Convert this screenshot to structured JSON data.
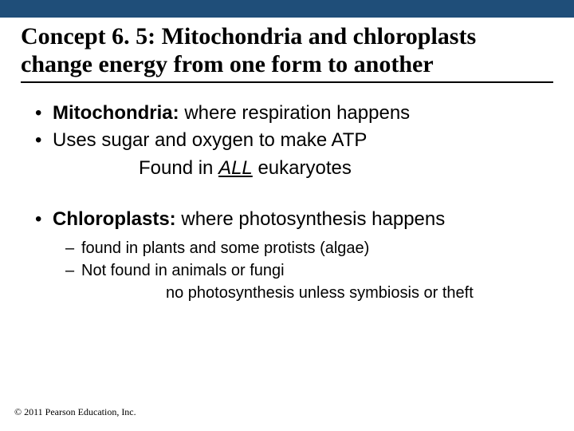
{
  "colors": {
    "topbar": "#1f4e79",
    "background": "#ffffff",
    "text": "#000000",
    "rule": "#000000"
  },
  "title": "Concept 6. 5: Mitochondria and chloroplasts change energy from one form to another",
  "bullets": [
    {
      "term": "Mitochondria:",
      "rest": "  where respiration happens"
    },
    {
      "term": "",
      "rest": "Uses sugar and oxygen to make ATP"
    }
  ],
  "mito_indent_prefix": "Found in ",
  "mito_indent_emph": "ALL",
  "mito_indent_suffix": " eukaryotes",
  "chloro": {
    "term": "Chloroplasts:",
    "rest": " where photosynthesis happens"
  },
  "dashes": [
    "found in plants and some protists (algae)",
    "Not found in animals or fungi"
  ],
  "chloro_indent": "no photosynthesis unless symbiosis or theft",
  "copyright": "© 2011 Pearson Education, Inc."
}
